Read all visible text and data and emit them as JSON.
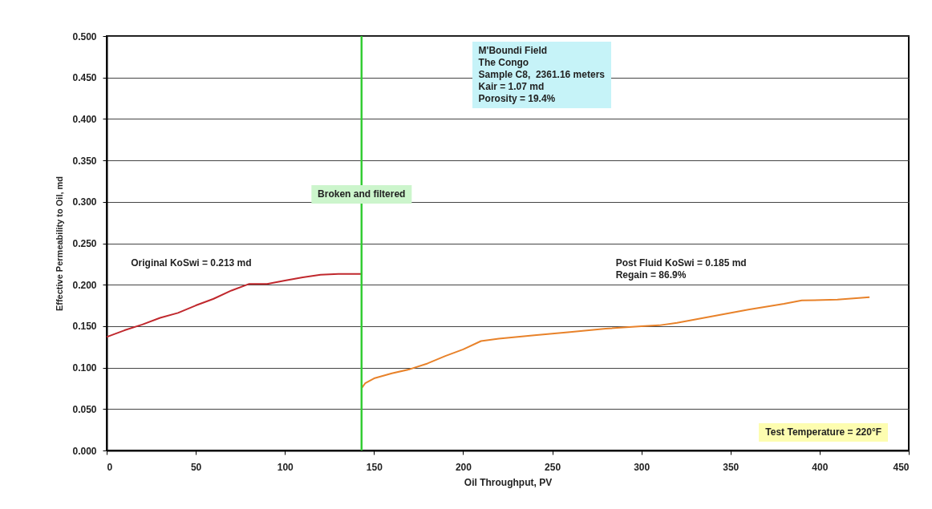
{
  "chart_data": {
    "type": "line",
    "xlabel": "Oil Throughput, PV",
    "ylabel": "Effective Permeability to Oil, md",
    "xlim": [
      0,
      450
    ],
    "xticks": [
      0,
      50,
      100,
      150,
      200,
      250,
      300,
      350,
      400,
      450
    ],
    "ylim": [
      0,
      0.5
    ],
    "yticks": [
      {
        "value": 0,
        "label": "0.000"
      },
      {
        "value": 0.05,
        "label": "0.050"
      },
      {
        "value": 0.1,
        "label": "0.100"
      },
      {
        "value": 0.15,
        "label": "0.150"
      },
      {
        "value": 0.2,
        "label": "0.200"
      },
      {
        "value": 0.25,
        "label": "0.250"
      },
      {
        "value": 0.3,
        "label": "0.300"
      },
      {
        "value": 0.35,
        "label": "0.350"
      },
      {
        "value": 0.4,
        "label": "0.400"
      },
      {
        "value": 0.45,
        "label": "0.450"
      },
      {
        "value": 0.5,
        "label": "0.500"
      }
    ],
    "grid": "y",
    "marker": "none",
    "line_style": "solid",
    "series": [
      {
        "color": "#c0282d",
        "x": [
          0,
          10,
          20,
          30,
          40,
          50,
          60,
          70,
          80,
          90,
          100,
          110,
          120,
          130,
          143
        ],
        "values": [
          0.137,
          0.145,
          0.152,
          0.16,
          0.166,
          0.175,
          0.183,
          0.193,
          0.201,
          0.201,
          0.205,
          0.209,
          0.212,
          0.213,
          0.213
        ]
      },
      {
        "color": "#e8822a",
        "x": [
          143,
          145,
          150,
          160,
          170,
          180,
          190,
          200,
          210,
          220,
          240,
          260,
          280,
          300,
          310,
          320,
          340,
          360,
          380,
          390,
          410,
          428
        ],
        "values": [
          0.075,
          0.081,
          0.087,
          0.093,
          0.098,
          0.105,
          0.114,
          0.122,
          0.132,
          0.135,
          0.139,
          0.143,
          0.147,
          0.15,
          0.151,
          0.154,
          0.162,
          0.17,
          0.177,
          0.181,
          0.182,
          0.185
        ]
      }
    ],
    "ref_lines": [
      {
        "axis": "x",
        "value": 143,
        "label": "Broken and filtered",
        "color": "#33cc33"
      }
    ],
    "annotations": [
      "M'Boundi Field\nThe Congo\nSample C8,  2361.16 meters\nKair = 1.07 md\nPorosity = 19.4%",
      "Original KoSwi = 0.213 md",
      "Post Fluid KoSwi = 0.185 md\nRegain = 86.9%",
      "Test Temperature = 220°F"
    ]
  }
}
